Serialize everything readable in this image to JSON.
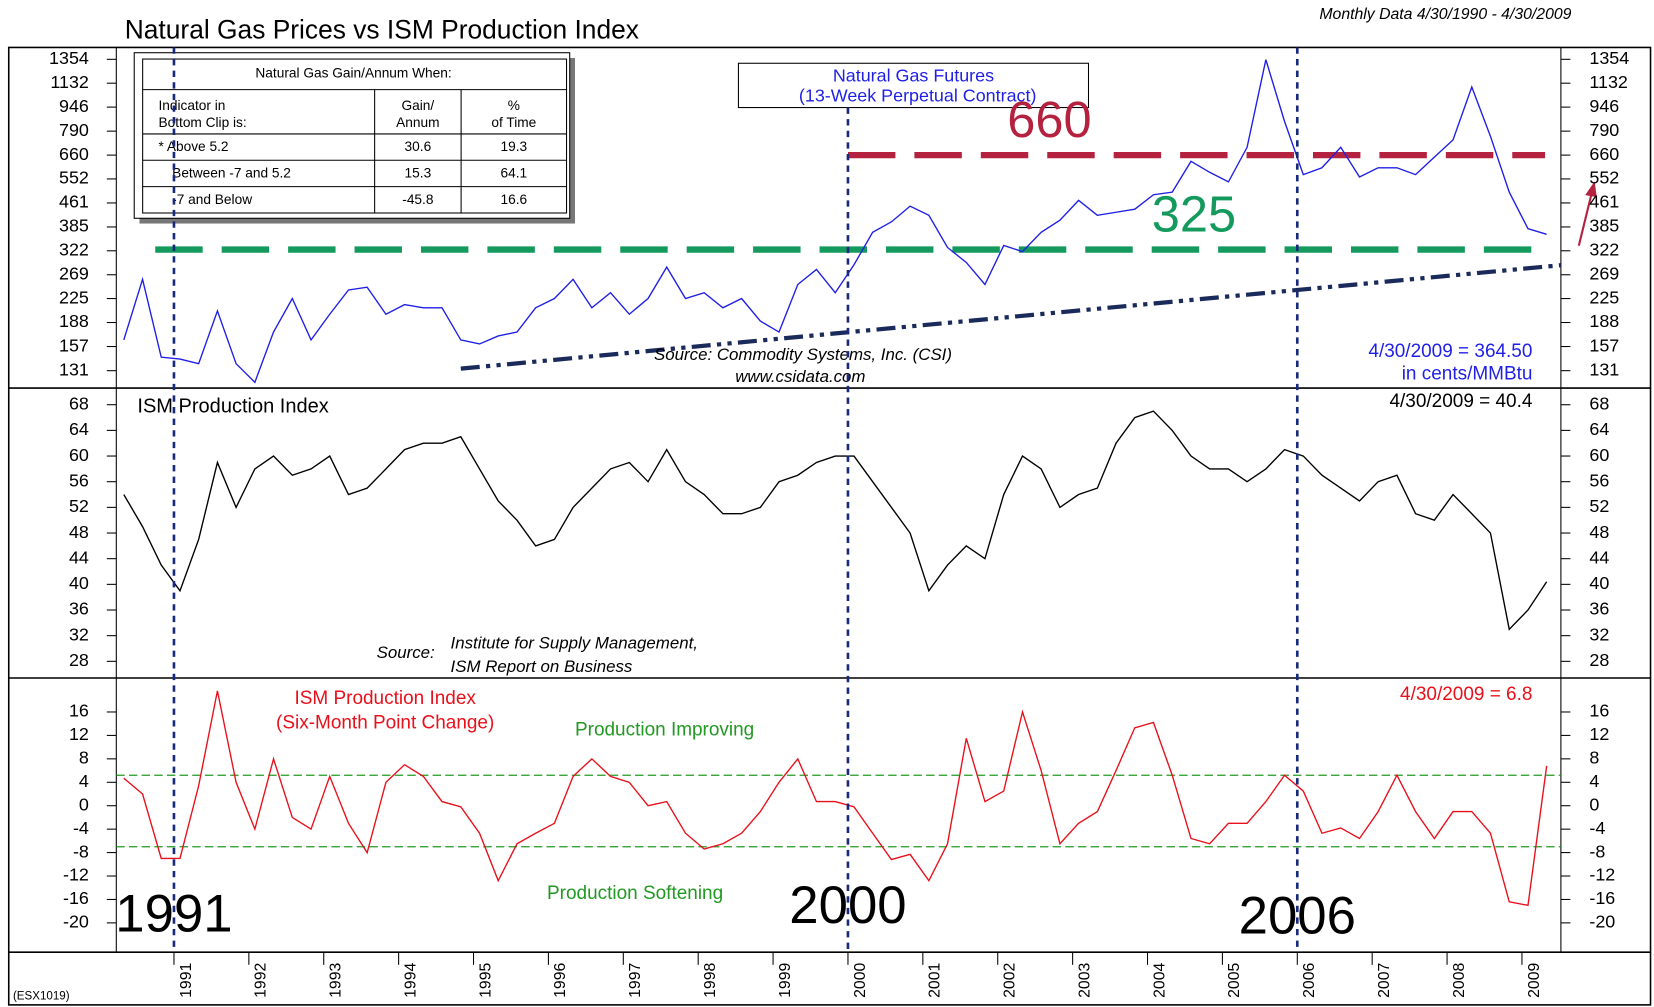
{
  "table": {
    "title": "Natural Gas Gain/Annum When:",
    "header": [
      [
        "Indicator in",
        "Bottom Clip is:"
      ],
      [
        "Gain/",
        "Annum"
      ],
      [
        "%",
        "of Time"
      ]
    ],
    "rows": [
      [
        "* Above 5.2",
        30.6,
        19.3
      ],
      [
        "Between -7 and 5.2",
        15.3,
        64.1
      ],
      [
        "-7 and Below",
        -45.8,
        16.6
      ]
    ]
  },
  "code": "(ESX1019)",
  "chart_data": [
    {
      "type": "line",
      "title": "Natural Gas Prices vs ISM Production Index",
      "subtitle": "Monthly Data 4/30/1990 - 4/30/2009",
      "log_y": true,
      "xlim": [
        1990.23,
        2009.52
      ],
      "ylim": [
        115,
        1480
      ],
      "yticks": [
        131,
        157,
        188,
        225,
        269,
        322,
        385,
        461,
        552,
        660,
        790,
        946,
        1132,
        1354
      ],
      "x": [
        1990.33,
        1990.58,
        1990.83,
        1991.08,
        1991.33,
        1991.58,
        1991.83,
        1992.08,
        1992.33,
        1992.58,
        1992.83,
        1993.08,
        1993.33,
        1993.58,
        1993.83,
        1994.08,
        1994.33,
        1994.58,
        1994.83,
        1995.08,
        1995.33,
        1995.58,
        1995.83,
        1996.08,
        1996.33,
        1996.58,
        1996.83,
        1997.08,
        1997.33,
        1997.58,
        1997.83,
        1998.08,
        1998.33,
        1998.58,
        1998.83,
        1999.08,
        1999.33,
        1999.58,
        1999.83,
        2000.08,
        2000.33,
        2000.58,
        2000.83,
        2001.08,
        2001.33,
        2001.58,
        2001.83,
        2002.08,
        2002.33,
        2002.58,
        2002.83,
        2003.08,
        2003.33,
        2003.58,
        2003.83,
        2004.08,
        2004.33,
        2004.58,
        2004.83,
        2005.08,
        2005.33,
        2005.58,
        2005.83,
        2006.08,
        2006.33,
        2006.58,
        2006.83,
        2007.08,
        2007.33,
        2007.58,
        2007.83,
        2008.08,
        2008.33,
        2008.58,
        2008.83,
        2009.08,
        2009.33
      ],
      "series": [
        {
          "name": "Natural Gas Futures",
          "name_note": "(13-Week Perpetual Contract)",
          "color": "#1f1fe6",
          "values": [
            165,
            260,
            145,
            143,
            138,
            205,
            138,
            120,
            175,
            225,
            165,
            200,
            240,
            245,
            200,
            215,
            210,
            210,
            165,
            160,
            170,
            175,
            210,
            225,
            260,
            210,
            235,
            200,
            225,
            285,
            225,
            235,
            210,
            225,
            190,
            175,
            250,
            280,
            235,
            290,
            370,
            400,
            450,
            420,
            330,
            295,
            250,
            335,
            320,
            370,
            405,
            470,
            420,
            430,
            440,
            490,
            500,
            630,
            580,
            540,
            700,
            1350,
            850,
            570,
            600,
            700,
            560,
            600,
            600,
            570,
            650,
            740,
            1100,
            760,
            500,
            380,
            364.5
          ]
        }
      ],
      "levels": [
        {
          "label": "660",
          "value": 660,
          "x_from": 2000,
          "color": "#b5223f"
        },
        {
          "label": "325",
          "value": 325,
          "x_from": 1990.75,
          "color": "#149a5c"
        }
      ],
      "trend": {
        "x": [
          1994.83,
          2009.52
        ],
        "values": [
          133,
          289
        ],
        "color": "#1a2a5a"
      },
      "source": [
        "Source:  Commodity Systems, Inc. (CSI)",
        "www.csidata.com"
      ],
      "last_label": [
        "4/30/2009 = 364.50",
        "in cents/MMBtu"
      ]
    },
    {
      "type": "line",
      "title": "ISM Production Index",
      "xlim": [
        1990.23,
        2009.52
      ],
      "ylim": [
        25.4,
        70.6
      ],
      "yticks": [
        28,
        32,
        36,
        40,
        44,
        48,
        52,
        56,
        60,
        64,
        68
      ],
      "x": [
        1990.33,
        1990.58,
        1990.83,
        1991.08,
        1991.33,
        1991.58,
        1991.83,
        1992.08,
        1992.33,
        1992.58,
        1992.83,
        1993.08,
        1993.33,
        1993.58,
        1993.83,
        1994.08,
        1994.33,
        1994.58,
        1994.83,
        1995.08,
        1995.33,
        1995.58,
        1995.83,
        1996.08,
        1996.33,
        1996.58,
        1996.83,
        1997.08,
        1997.33,
        1997.58,
        1997.83,
        1998.08,
        1998.33,
        1998.58,
        1998.83,
        1999.08,
        1999.33,
        1999.58,
        1999.83,
        2000.08,
        2000.33,
        2000.58,
        2000.83,
        2001.08,
        2001.33,
        2001.58,
        2001.83,
        2002.08,
        2002.33,
        2002.58,
        2002.83,
        2003.08,
        2003.33,
        2003.58,
        2003.83,
        2004.08,
        2004.33,
        2004.58,
        2004.83,
        2005.08,
        2005.33,
        2005.58,
        2005.83,
        2006.08,
        2006.33,
        2006.58,
        2006.83,
        2007.08,
        2007.33,
        2007.58,
        2007.83,
        2008.08,
        2008.33,
        2008.58,
        2008.83,
        2009.08,
        2009.33
      ],
      "series": [
        {
          "name": "ISM Production Index",
          "color": "#000000",
          "values": [
            54,
            49,
            43,
            39,
            47,
            59,
            52,
            58,
            60,
            57,
            58,
            60,
            54,
            55,
            58,
            61,
            62,
            62,
            63,
            58,
            53,
            50,
            46,
            47,
            52,
            55,
            58,
            59,
            56,
            61,
            56,
            54,
            51,
            51,
            52,
            56,
            57,
            59,
            60,
            60,
            56,
            52,
            48,
            39,
            43,
            46,
            44,
            54,
            60,
            58,
            52,
            54,
            55,
            62,
            66,
            67,
            64,
            60,
            58,
            58,
            56,
            58,
            61,
            60,
            57,
            55,
            53,
            56,
            57,
            51,
            50,
            54,
            51,
            48,
            33,
            36,
            40.4
          ]
        }
      ],
      "source": [
        "Source:",
        "Institute for Supply Management,",
        "ISM Report on Business"
      ],
      "last_label": [
        "4/30/2009 = 40.4"
      ]
    },
    {
      "type": "line",
      "xlim": [
        1990.23,
        2009.52
      ],
      "ylim": [
        -25,
        21.8
      ],
      "yticks": [
        -20,
        -16,
        -12,
        -8,
        -4,
        0,
        4,
        8,
        12,
        16
      ],
      "xticks": [
        1991,
        1992,
        1993,
        1994,
        1995,
        1996,
        1997,
        1998,
        1999,
        2000,
        2001,
        2002,
        2003,
        2004,
        2005,
        2006,
        2007,
        2008,
        2009
      ],
      "x": [
        1990.33,
        1990.58,
        1990.83,
        1991.08,
        1991.33,
        1991.58,
        1991.83,
        1992.08,
        1992.33,
        1992.58,
        1992.83,
        1993.08,
        1993.33,
        1993.58,
        1993.83,
        1994.08,
        1994.33,
        1994.58,
        1994.83,
        1995.08,
        1995.33,
        1995.58,
        1995.83,
        1996.08,
        1996.33,
        1996.58,
        1996.83,
        1997.08,
        1997.33,
        1997.58,
        1997.83,
        1998.08,
        1998.33,
        1998.58,
        1998.83,
        1999.08,
        1999.33,
        1999.58,
        1999.83,
        2000.08,
        2000.33,
        2000.58,
        2000.83,
        2001.08,
        2001.33,
        2001.58,
        2001.83,
        2002.08,
        2002.33,
        2002.58,
        2002.83,
        2003.08,
        2003.33,
        2003.58,
        2003.83,
        2004.08,
        2004.33,
        2004.58,
        2004.83,
        2005.08,
        2005.33,
        2005.58,
        2005.83,
        2006.08,
        2006.33,
        2006.58,
        2006.83,
        2007.08,
        2007.33,
        2007.58,
        2007.83,
        2008.08,
        2008.33,
        2008.58,
        2008.83,
        2009.08,
        2009.33
      ],
      "series": [
        {
          "name": "ISM Production Index",
          "name_note": "(Six-Month Point Change)",
          "color": "#e8101a",
          "values": [
            4.7,
            2,
            -9,
            -9,
            3.4,
            19.6,
            4,
            -4,
            8,
            -2,
            -4,
            5,
            -3,
            -8,
            4,
            7,
            5,
            0.7,
            -0.2,
            -4.7,
            -12.8,
            -6.5,
            -4.7,
            -3,
            5,
            8,
            5,
            4,
            0,
            0.7,
            -4.7,
            -7.4,
            -6.5,
            -4.7,
            -1,
            4,
            8,
            0.7,
            0.7,
            -0.2,
            -4.7,
            -9.2,
            -8.3,
            -12.8,
            -6.5,
            11.5,
            0.7,
            2.5,
            16,
            6,
            -6.5,
            -3,
            -1,
            6,
            13.3,
            14.2,
            5.2,
            -5.6,
            -6.5,
            -3,
            -3,
            0.7,
            5.2,
            2.5,
            -4.7,
            -3.8,
            -5.6,
            -1,
            5.2,
            -1,
            -5.6,
            -1,
            -1,
            -4.7,
            -16.4,
            -17,
            6.8
          ]
        }
      ],
      "levels": [
        {
          "value": 5.2,
          "color": "#229922"
        },
        {
          "value": -7,
          "color": "#229922"
        }
      ],
      "zones": [
        "Production Improving",
        "Production Softening"
      ],
      "events": [
        1991,
        2000,
        2006
      ],
      "last_label": [
        "4/30/2009 = 6.8"
      ]
    }
  ]
}
